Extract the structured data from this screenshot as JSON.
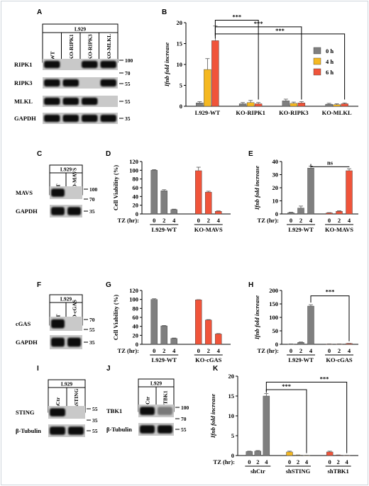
{
  "panels": {
    "A": {
      "label": "A",
      "cell_line": "L929",
      "lanes": [
        "WT",
        "KO-RIPK1",
        "KO-RIPK3",
        "KO-MLKL"
      ],
      "rows": [
        "RIPK1",
        "RIPK3",
        "MLKL",
        "GAPDH"
      ],
      "markers": [
        "100",
        "70",
        "55",
        "55",
        "35"
      ]
    },
    "C": {
      "label": "C",
      "cell_line": "L929",
      "lanes": [
        "WT",
        "KO-MAVS"
      ],
      "rows": [
        "MAVS",
        "GAPDH"
      ],
      "markers": [
        "100",
        "70",
        "35"
      ]
    },
    "F": {
      "label": "F",
      "cell_line": "L929",
      "lanes": [
        "WT",
        "KO-cGAS"
      ],
      "rows": [
        "cGAS",
        "GAPDH"
      ],
      "markers": [
        "70",
        "55",
        "35"
      ]
    },
    "I": {
      "label": "I",
      "cell_line": "L929",
      "lanes": [
        "shCtr",
        "shSTING"
      ],
      "rows": [
        "STING",
        "β-Tubulin"
      ],
      "markers": [
        "55",
        "35",
        "55"
      ]
    },
    "J": {
      "label": "J",
      "cell_line": "L929",
      "lanes": [
        "shCtr",
        "shTBK1"
      ],
      "rows": [
        "TBK1",
        "β-Tubulin"
      ],
      "markers": [
        "100",
        "70",
        "55"
      ]
    }
  },
  "tz_label": "TZ (hr):",
  "chart_data": [
    {
      "id": "B",
      "type": "bar",
      "ylabel": "Ifnb fold increase",
      "ylim": [
        0,
        20
      ],
      "yticks": [
        0,
        5,
        10,
        15,
        20
      ],
      "groups": [
        "L929-WT",
        "KO-RIPK1",
        "KO-RIPK3",
        "KO-MLKL"
      ],
      "series": [
        {
          "name": "0 h",
          "color": "#7f7f7f",
          "values": [
            0.8,
            0.6,
            1.3,
            0.5
          ]
        },
        {
          "name": "4 h",
          "color": "#f5b820",
          "values": [
            8.8,
            0.9,
            0.7,
            0.4
          ]
        },
        {
          "name": "6 h",
          "color": "#f0543a",
          "values": [
            15.7,
            0.6,
            0.8,
            0.6
          ]
        }
      ],
      "errors": [
        [
          0.3,
          0.3,
          0.4,
          0.2
        ],
        [
          2.6,
          0.5,
          0.3,
          0.2
        ],
        [
          3.5,
          0.3,
          0.3,
          0.2
        ]
      ],
      "significance": [
        "***",
        "***",
        "***"
      ],
      "legend_position": "top-right"
    },
    {
      "id": "D",
      "type": "bar",
      "ylabel": "Cell Viability (%)",
      "ylim": [
        0,
        120
      ],
      "yticks": [
        0,
        20,
        40,
        60,
        80,
        100,
        120
      ],
      "x_label": "TZ (hr):",
      "x": [
        "0",
        "2",
        "4",
        "0",
        "2",
        "4"
      ],
      "groups": [
        "L929-WT",
        "KO-MAVS"
      ],
      "values": [
        100,
        53,
        10,
        99,
        50,
        6
      ],
      "errors": [
        1.5,
        2.5,
        1,
        8,
        2,
        1
      ],
      "colors": [
        "#7f7f7f",
        "#7f7f7f",
        "#7f7f7f",
        "#f0543a",
        "#f0543a",
        "#f0543a"
      ]
    },
    {
      "id": "E",
      "type": "bar",
      "ylabel": "Ifnb fold increase",
      "ylim": [
        0,
        40
      ],
      "yticks": [
        0,
        10,
        20,
        30,
        40
      ],
      "x_label": "TZ (hr):",
      "x": [
        "0",
        "2",
        "4",
        "0",
        "2",
        "4"
      ],
      "groups": [
        "L929-WT",
        "KO-MAVS"
      ],
      "values": [
        1,
        4.5,
        35,
        0.8,
        2,
        33
      ],
      "errors": [
        0.3,
        1.5,
        1.5,
        0.2,
        0.4,
        1.5
      ],
      "colors": [
        "#7f7f7f",
        "#7f7f7f",
        "#7f7f7f",
        "#f0543a",
        "#f0543a",
        "#f0543a"
      ],
      "significance": [
        "ns"
      ]
    },
    {
      "id": "G",
      "type": "bar",
      "ylabel": "Cell Viability (%)",
      "ylim": [
        0,
        120
      ],
      "yticks": [
        0,
        20,
        40,
        60,
        80,
        100,
        120
      ],
      "x_label": "TZ (hr):",
      "x": [
        "0",
        "2",
        "4",
        "0",
        "2",
        "4"
      ],
      "groups": [
        "L929-WT",
        "KO-cGAS"
      ],
      "values": [
        100,
        41,
        13,
        99,
        54,
        23
      ],
      "errors": [
        1.5,
        1,
        1,
        0.5,
        1,
        1
      ],
      "colors": [
        "#7f7f7f",
        "#7f7f7f",
        "#7f7f7f",
        "#f0543a",
        "#f0543a",
        "#f0543a"
      ]
    },
    {
      "id": "H",
      "type": "bar",
      "ylabel": "Ifnb fold increase",
      "ylim": [
        0,
        200
      ],
      "yticks": [
        0,
        50,
        100,
        150,
        200
      ],
      "x_label": "TZ (hr):",
      "x": [
        "0",
        "2",
        "4",
        "0",
        "2",
        "4"
      ],
      "groups": [
        "L929-WT",
        "KO-cGAS"
      ],
      "values": [
        1,
        7,
        142,
        1,
        1,
        3
      ],
      "errors": [
        0.5,
        1.5,
        5,
        0.5,
        0.5,
        0.5
      ],
      "colors": [
        "#7f7f7f",
        "#7f7f7f",
        "#7f7f7f",
        "#f0543a",
        "#f0543a",
        "#f0543a"
      ],
      "significance": [
        "***"
      ]
    },
    {
      "id": "K",
      "type": "bar",
      "ylabel": "Ifnb fold increase",
      "ylim": [
        0,
        20
      ],
      "yticks": [
        0,
        5,
        10,
        15,
        20
      ],
      "x_label": "TZ (hr):",
      "x": [
        "0",
        "2",
        "4",
        "0",
        "2",
        "4",
        "0",
        "2",
        "4"
      ],
      "groups": [
        "shCtr",
        "shSTING",
        "shTBK1"
      ],
      "values": [
        1,
        1.1,
        15,
        0.9,
        0.1,
        0.05,
        0.9,
        0.1,
        0.05
      ],
      "errors": [
        0.1,
        0.15,
        0.6,
        0.2,
        0.05,
        0.02,
        0.2,
        0.05,
        0.02
      ],
      "colors": [
        "#7f7f7f",
        "#7f7f7f",
        "#7f7f7f",
        "#f5b820",
        "#f5b820",
        "#f5b820",
        "#f0543a",
        "#f0543a",
        "#f0543a"
      ],
      "significance": [
        "***",
        "***"
      ]
    }
  ]
}
